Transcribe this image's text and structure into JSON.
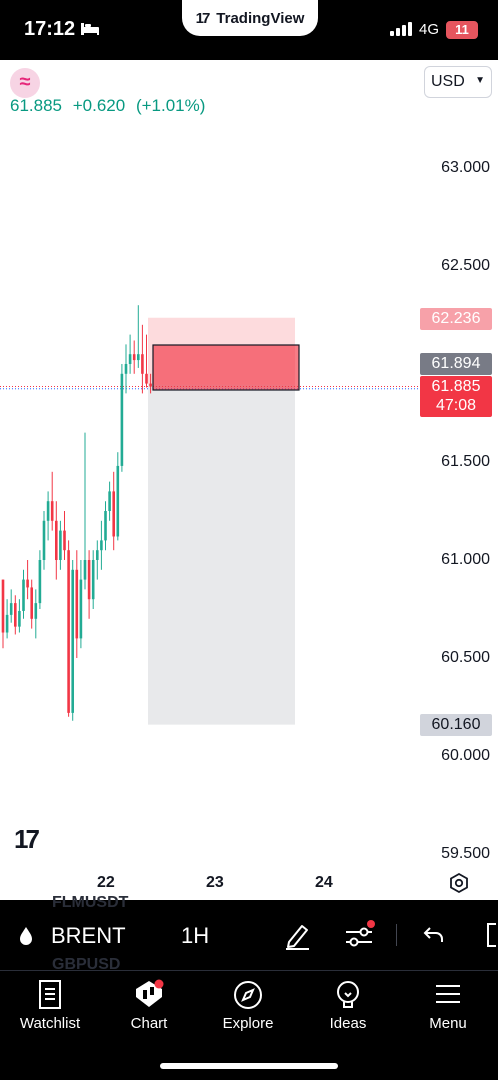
{
  "status": {
    "time": "17:12",
    "network": "4G",
    "battery": "11",
    "app_pill": "TradingView"
  },
  "header": {
    "symbol_badge": "≈",
    "last": "61.885",
    "change": "+0.620",
    "change_pct": "(+1.01%)",
    "currency": "USD"
  },
  "price_axis": {
    "ticks": [
      "63.000",
      "62.500",
      "62.000",
      "61.500",
      "61.000",
      "60.500",
      "60.000",
      "59.500"
    ],
    "tags": {
      "stop": "62.236",
      "entry": "61.894",
      "last": "61.885",
      "countdown": "47:08",
      "target": "60.160"
    }
  },
  "time_axis": {
    "ticks": [
      "22",
      "23",
      "24"
    ]
  },
  "toolbar": {
    "symbol": "BRENT",
    "interval": "1H",
    "ghost_top": "FLMUSDT",
    "ghost_bottom": "GBPUSD"
  },
  "nav": {
    "items": [
      {
        "label": "Watchlist"
      },
      {
        "label": "Chart"
      },
      {
        "label": "Explore"
      },
      {
        "label": "Ideas"
      },
      {
        "label": "Menu"
      }
    ]
  },
  "colors": {
    "up": "#089981",
    "down": "#f23645",
    "brand_green": "#22ab94"
  },
  "chart_data": {
    "type": "candlestick",
    "interval": "1H",
    "ylim": [
      59.4,
      63.2
    ],
    "candles_ohlc": [
      [
        60.9,
        60.9,
        60.55,
        60.63
      ],
      [
        60.63,
        60.8,
        60.6,
        60.72
      ],
      [
        60.72,
        60.85,
        60.68,
        60.78
      ],
      [
        60.78,
        60.82,
        60.62,
        60.66
      ],
      [
        60.66,
        60.8,
        60.63,
        60.74
      ],
      [
        60.74,
        60.95,
        60.7,
        60.9
      ],
      [
        60.9,
        61.0,
        60.8,
        60.86
      ],
      [
        60.86,
        60.9,
        60.65,
        60.7
      ],
      [
        60.7,
        60.85,
        60.6,
        60.78
      ],
      [
        60.78,
        61.05,
        60.75,
        61.0
      ],
      [
        61.0,
        61.25,
        60.95,
        61.2
      ],
      [
        61.2,
        61.35,
        61.1,
        61.3
      ],
      [
        61.3,
        61.45,
        61.15,
        61.2
      ],
      [
        61.2,
        61.3,
        60.9,
        61.0
      ],
      [
        61.0,
        61.2,
        60.95,
        61.15
      ],
      [
        61.15,
        61.25,
        61.0,
        61.05
      ],
      [
        61.05,
        61.1,
        60.2,
        60.22
      ],
      [
        60.22,
        61.0,
        60.18,
        60.95
      ],
      [
        60.95,
        61.05,
        60.5,
        60.6
      ],
      [
        60.6,
        61.0,
        60.55,
        60.9
      ],
      [
        60.9,
        61.65,
        60.85,
        61.0
      ],
      [
        61.0,
        61.05,
        60.7,
        60.8
      ],
      [
        60.8,
        61.05,
        60.75,
        61.0
      ],
      [
        61.0,
        61.1,
        60.9,
        61.05
      ],
      [
        61.05,
        61.2,
        60.95,
        61.1
      ],
      [
        61.1,
        61.3,
        61.05,
        61.25
      ],
      [
        61.25,
        61.4,
        61.2,
        61.35
      ],
      [
        61.35,
        61.45,
        61.05,
        61.12
      ],
      [
        61.12,
        61.55,
        61.1,
        61.48
      ],
      [
        61.48,
        62.0,
        61.45,
        61.95
      ],
      [
        61.95,
        62.1,
        61.85,
        62.0
      ],
      [
        62.0,
        62.15,
        61.95,
        62.05
      ],
      [
        62.05,
        62.12,
        61.95,
        62.02
      ],
      [
        62.02,
        62.3,
        61.98,
        62.05
      ],
      [
        62.05,
        62.2,
        61.85,
        61.95
      ],
      [
        61.95,
        62.15,
        61.88,
        61.9
      ],
      [
        61.9,
        61.95,
        61.85,
        61.885
      ]
    ],
    "short_position": {
      "entry": 61.894,
      "stop": 62.236,
      "target": 60.16
    }
  }
}
